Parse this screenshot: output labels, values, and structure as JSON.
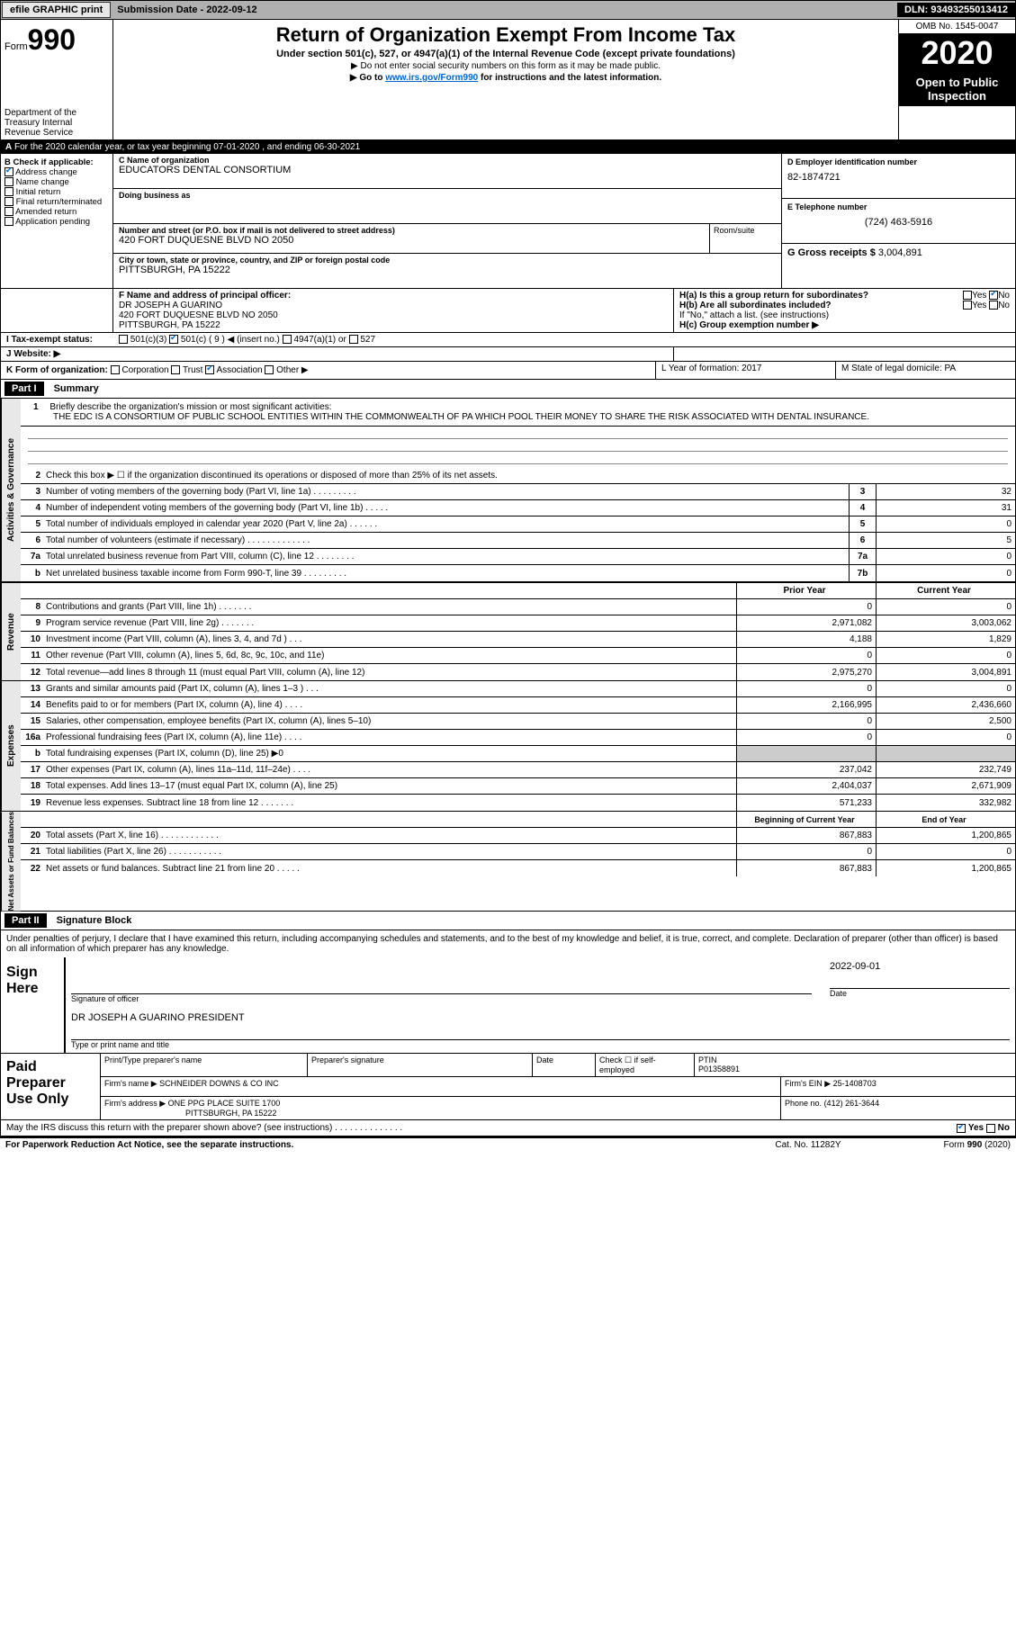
{
  "topbar": {
    "efile": "efile GRAPHIC print",
    "submission_label": "Submission Date - 2022-09-12",
    "dln": "DLN: 93493255013412"
  },
  "header": {
    "form_label": "Form",
    "form_number": "990",
    "title": "Return of Organization Exempt From Income Tax",
    "subtitle1": "Under section 501(c), 527, or 4947(a)(1) of the Internal Revenue Code (except private foundations)",
    "subtitle2": "▶ Do not enter social security numbers on this form as it may be made public.",
    "subtitle3_pre": "▶ Go to ",
    "subtitle3_link": "www.irs.gov/Form990",
    "subtitle3_post": " for instructions and the latest information.",
    "omb": "OMB No. 1545-0047",
    "year": "2020",
    "open": "Open to Public Inspection",
    "dept": "Department of the Treasury Internal Revenue Service"
  },
  "line_a": "For the 2020 calendar year, or tax year beginning 07-01-2020   , and ending 06-30-2021",
  "box_b": {
    "label": "B Check if applicable:",
    "items": [
      "Address change",
      "Name change",
      "Initial return",
      "Final return/terminated",
      "Amended return",
      "Application pending"
    ],
    "checked_index": 0
  },
  "box_c": {
    "name_label": "C Name of organization",
    "name": "EDUCATORS DENTAL CONSORTIUM",
    "dba_label": "Doing business as",
    "addr_label": "Number and street (or P.O. box if mail is not delivered to street address)",
    "addr": "420 FORT DUQUESNE BLVD NO 2050",
    "room_label": "Room/suite",
    "city_label": "City or town, state or province, country, and ZIP or foreign postal code",
    "city": "PITTSBURGH, PA  15222"
  },
  "box_d": {
    "label": "D Employer identification number",
    "value": "82-1874721"
  },
  "box_e": {
    "label": "E Telephone number",
    "value": "(724) 463-5916"
  },
  "box_g": {
    "label": "G Gross receipts $",
    "value": "3,004,891"
  },
  "box_f": {
    "label": "F Name and address of principal officer:",
    "name": "DR JOSEPH A GUARINO",
    "addr1": "420 FORT DUQUESNE BLVD NO 2050",
    "addr2": "PITTSBURGH, PA  15222"
  },
  "box_h": {
    "ha": "H(a)  Is this a group return for subordinates?",
    "hb": "H(b)  Are all subordinates included?",
    "hb_note": "If \"No,\" attach a list. (see instructions)",
    "hc": "H(c)  Group exemption number ▶",
    "yes": "Yes",
    "no": "No"
  },
  "row_i": {
    "label": "I  Tax-exempt status:",
    "opts": [
      "501(c)(3)",
      "501(c) ( 9 ) ◀ (insert no.)",
      "4947(a)(1) or",
      "527"
    ],
    "checked_index": 1
  },
  "row_j": {
    "label": "J  Website: ▶"
  },
  "row_k": {
    "label": "K Form of organization:",
    "opts": [
      "Corporation",
      "Trust",
      "Association",
      "Other ▶"
    ],
    "checked_index": 2,
    "l": "L Year of formation: 2017",
    "m": "M State of legal domicile: PA"
  },
  "part1": {
    "label": "Part I",
    "title": "Summary"
  },
  "mission": {
    "num": "1",
    "label": "Briefly describe the organization's mission or most significant activities:",
    "text": "THE EDC IS A CONSORTIUM OF PUBLIC SCHOOL ENTITIES WITHIN THE COMMONWEALTH OF PA WHICH POOL THEIR MONEY TO SHARE THE RISK ASSOCIATED WITH DENTAL INSURANCE."
  },
  "gov_lines": [
    {
      "num": "2",
      "text": "Check this box ▶ ☐  if the organization discontinued its operations or disposed of more than 25% of its net assets.",
      "box": "",
      "val": ""
    },
    {
      "num": "3",
      "text": "Number of voting members of the governing body (Part VI, line 1a)  .   .   .   .   .   .   .   .   .",
      "box": "3",
      "val": "32"
    },
    {
      "num": "4",
      "text": "Number of independent voting members of the governing body (Part VI, line 1b)   .   .   .   .   .",
      "box": "4",
      "val": "31"
    },
    {
      "num": "5",
      "text": "Total number of individuals employed in calendar year 2020 (Part V, line 2a)   .   .   .   .   .   .",
      "box": "5",
      "val": "0"
    },
    {
      "num": "6",
      "text": "Total number of volunteers (estimate if necessary)   .   .   .   .   .   .   .   .   .   .   .   .   .",
      "box": "6",
      "val": "5"
    },
    {
      "num": "7a",
      "text": "Total unrelated business revenue from Part VIII, column (C), line 12   .   .   .   .   .   .   .   .",
      "box": "7a",
      "val": "0"
    },
    {
      "num": "b",
      "text": "Net unrelated business taxable income from Form 990-T, line 39   .   .   .   .   .   .   .   .   .",
      "box": "7b",
      "val": "0"
    }
  ],
  "col_headers": {
    "prior": "Prior Year",
    "current": "Current Year"
  },
  "rev_lines": [
    {
      "num": "8",
      "text": "Contributions and grants (Part VIII, line 1h)   .   .   .   .   .   .   .",
      "prior": "0",
      "current": "0"
    },
    {
      "num": "9",
      "text": "Program service revenue (Part VIII, line 2g)   .   .   .   .   .   .   .",
      "prior": "2,971,082",
      "current": "3,003,062"
    },
    {
      "num": "10",
      "text": "Investment income (Part VIII, column (A), lines 3, 4, and 7d )   .   .   .",
      "prior": "4,188",
      "current": "1,829"
    },
    {
      "num": "11",
      "text": "Other revenue (Part VIII, column (A), lines 5, 6d, 8c, 9c, 10c, and 11e)",
      "prior": "0",
      "current": "0"
    },
    {
      "num": "12",
      "text": "Total revenue—add lines 8 through 11 (must equal Part VIII, column (A), line 12)",
      "prior": "2,975,270",
      "current": "3,004,891"
    }
  ],
  "exp_lines": [
    {
      "num": "13",
      "text": "Grants and similar amounts paid (Part IX, column (A), lines 1–3 )   .   .   .",
      "prior": "0",
      "current": "0"
    },
    {
      "num": "14",
      "text": "Benefits paid to or for members (Part IX, column (A), line 4)   .   .   .   .",
      "prior": "2,166,995",
      "current": "2,436,660"
    },
    {
      "num": "15",
      "text": "Salaries, other compensation, employee benefits (Part IX, column (A), lines 5–10)",
      "prior": "0",
      "current": "2,500"
    },
    {
      "num": "16a",
      "text": "Professional fundraising fees (Part IX, column (A), line 11e)   .   .   .   .",
      "prior": "0",
      "current": "0"
    },
    {
      "num": "b",
      "text": "Total fundraising expenses (Part IX, column (D), line 25) ▶0",
      "prior": "SHADE",
      "current": "SHADE"
    },
    {
      "num": "17",
      "text": "Other expenses (Part IX, column (A), lines 11a–11d, 11f–24e)   .   .   .   .",
      "prior": "237,042",
      "current": "232,749"
    },
    {
      "num": "18",
      "text": "Total expenses. Add lines 13–17 (must equal Part IX, column (A), line 25)",
      "prior": "2,404,037",
      "current": "2,671,909"
    },
    {
      "num": "19",
      "text": "Revenue less expenses. Subtract line 18 from line 12 .   .   .   .   .   .   .",
      "prior": "571,233",
      "current": "332,982"
    }
  ],
  "net_headers": {
    "begin": "Beginning of Current Year",
    "end": "End of Year"
  },
  "net_lines": [
    {
      "num": "20",
      "text": "Total assets (Part X, line 16)   .   .   .   .   .   .   .   .   .   .   .   .",
      "prior": "867,883",
      "current": "1,200,865"
    },
    {
      "num": "21",
      "text": "Total liabilities (Part X, line 26)  .   .   .   .   .   .   .   .   .   .   .",
      "prior": "0",
      "current": "0"
    },
    {
      "num": "22",
      "text": "Net assets or fund balances. Subtract line 21 from line 20 .   .   .   .   .",
      "prior": "867,883",
      "current": "1,200,865"
    }
  ],
  "side_labels": {
    "gov": "Activities & Governance",
    "rev": "Revenue",
    "exp": "Expenses",
    "net": "Net Assets or Fund Balances"
  },
  "part2": {
    "label": "Part II",
    "title": "Signature Block"
  },
  "sig": {
    "perjury": "Under penalties of perjury, I declare that I have examined this return, including accompanying schedules and statements, and to the best of my knowledge and belief, it is true, correct, and complete. Declaration of preparer (other than officer) is based on all information of which preparer has any knowledge.",
    "sign_here": "Sign Here",
    "date": "2022-09-01",
    "sig_of_officer": "Signature of officer",
    "date_label": "Date",
    "officer_name": "DR JOSEPH A GUARINO  PRESIDENT",
    "type_name": "Type or print name and title"
  },
  "paid": {
    "label": "Paid Preparer Use Only",
    "h_print": "Print/Type preparer's name",
    "h_sig": "Preparer's signature",
    "h_date": "Date",
    "h_check": "Check ☐ if self-employed",
    "h_ptin": "PTIN",
    "ptin": "P01358891",
    "firm_name_label": "Firm's name    ▶",
    "firm_name": "SCHNEIDER DOWNS & CO INC",
    "firm_ein_label": "Firm's EIN ▶",
    "firm_ein": "25-1408703",
    "firm_addr_label": "Firm's address ▶",
    "firm_addr1": "ONE PPG PLACE SUITE 1700",
    "firm_addr2": "PITTSBURGH, PA  15222",
    "phone_label": "Phone no.",
    "phone": "(412) 261-3644"
  },
  "discuss": {
    "text": "May the IRS discuss this return with the preparer shown above? (see instructions)   .   .   .   .   .   .   .   .   .   .   .   .   .   .",
    "yes": "Yes",
    "no": "No",
    "checked": "yes"
  },
  "footer": {
    "left": "For Paperwork Reduction Act Notice, see the separate instructions.",
    "mid": "Cat. No. 11282Y",
    "right": "Form 990 (2020)"
  }
}
